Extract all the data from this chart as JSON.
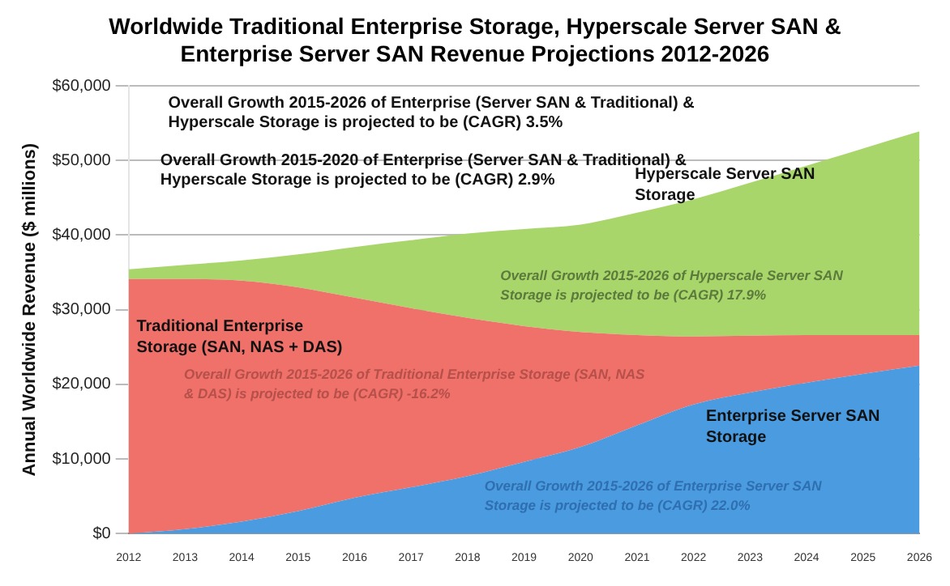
{
  "chart_data": {
    "type": "area",
    "stacked": true,
    "title": "Worldwide Traditional Enterprise Storage, Hyperscale Server SAN & Enterprise Server SAN Revenue Projections 2012-2026",
    "ylabel": "Annual Worldwide Revenue ($ millions)",
    "categories": [
      "2012",
      "2013",
      "2014",
      "2015",
      "2016",
      "2017",
      "2018",
      "2019",
      "2020",
      "2021",
      "2022",
      "2023",
      "2024",
      "2025",
      "2026"
    ],
    "series": [
      {
        "name": "Enterprise Server SAN Storage",
        "color": "#4a9be0",
        "values": [
          0,
          600,
          1600,
          3000,
          4800,
          6200,
          7700,
          9600,
          11600,
          14500,
          17300,
          18900,
          20200,
          21400,
          22500
        ]
      },
      {
        "name": "Traditional Enterprise Storage (SAN, NAS + DAS)",
        "color": "#f0706a",
        "values": [
          34100,
          33500,
          32300,
          30000,
          26800,
          24000,
          21200,
          18200,
          15400,
          12100,
          9100,
          7600,
          6400,
          5200,
          4100
        ]
      },
      {
        "name": "Hyperscale Server SAN Storage",
        "color": "#a8d66a",
        "values": [
          1300,
          1900,
          2700,
          4400,
          6800,
          9100,
          11300,
          13000,
          14400,
          16400,
          18400,
          20500,
          22700,
          25000,
          27300
        ]
      }
    ],
    "ylim": [
      0,
      60000
    ],
    "yticks": [
      {
        "value": 0,
        "label": "$0"
      },
      {
        "value": 10000,
        "label": "$10,000"
      },
      {
        "value": 20000,
        "label": "$20,000"
      },
      {
        "value": 30000,
        "label": "$30,000"
      },
      {
        "value": 40000,
        "label": "$40,000"
      },
      {
        "value": 50000,
        "label": "$50,000"
      },
      {
        "value": 60000,
        "label": "$60,000"
      }
    ],
    "grid": "y",
    "legend": false,
    "annotations": [
      "Overall Growth 2015-2026 of Enterprise (Server SAN & Traditional) & Hyperscale Storage is projected to be (CAGR) 3.5%",
      "Overall Growth 2015-2020 of Enterprise (Server SAN & Traditional) & Hyperscale Storage is projected to be (CAGR) 2.9%",
      "Overall Growth 2015-2026 of Hyperscale Server SAN Storage is projected to be (CAGR) 17.9%",
      "Overall Growth 2015-2026 of Traditional Enterprise Storage (SAN, NAS & DAS) is projected to be (CAGR) -16.2%",
      "Overall Growth 2015-2026 of Enterprise Server SAN Storage is projected to be (CAGR) 22.0%"
    ]
  }
}
